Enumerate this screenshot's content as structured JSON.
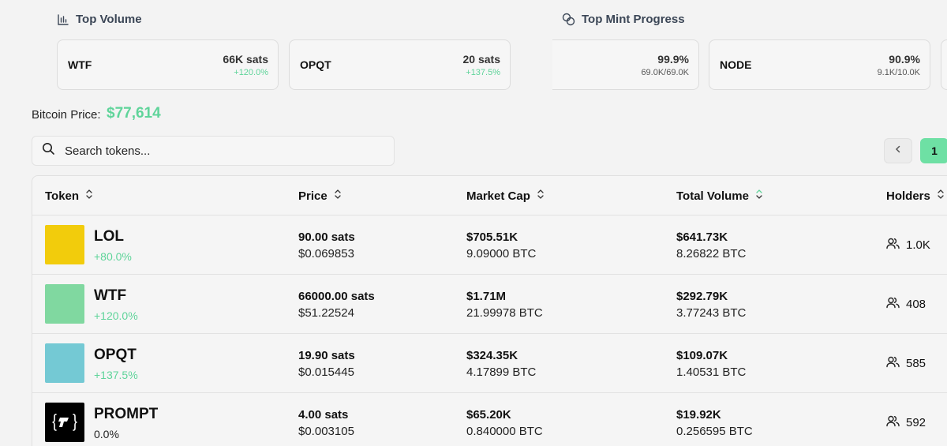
{
  "top_volume": {
    "title": "Top Volume",
    "cards": [
      {
        "name": "WTF",
        "value": "66K sats",
        "change": "+120.0%"
      },
      {
        "name": "OPQT",
        "value": "20 sats",
        "change": "+137.5%"
      }
    ]
  },
  "top_mint": {
    "title": "Top Mint Progress",
    "cards": [
      {
        "name": "",
        "value": "99.9%",
        "sub": "69.0K/69.0K"
      },
      {
        "name": "NODE",
        "value": "90.9%",
        "sub": "9.1K/10.0K"
      }
    ]
  },
  "bitcoin": {
    "label": "Bitcoin Price:",
    "value": "$77,614"
  },
  "search": {
    "placeholder": "Search tokens..."
  },
  "pagination": {
    "current": "1"
  },
  "table": {
    "headers": {
      "token": "Token",
      "price": "Price",
      "market_cap": "Market Cap",
      "total_volume": "Total Volume",
      "holders": "Holders"
    },
    "rows": [
      {
        "name": "LOL",
        "change": "+80.0%",
        "color": "#f2cc0c",
        "price_sats": "90.00 sats",
        "price_usd": "$0.069853",
        "mcap_usd": "$705.51K",
        "mcap_btc": "9.09000 BTC",
        "vol_usd": "$641.73K",
        "vol_btc": "8.26822 BTC",
        "holders": "1.0K"
      },
      {
        "name": "WTF",
        "change": "+120.0%",
        "color": "#80d8a0",
        "price_sats": "66000.00 sats",
        "price_usd": "$51.22524",
        "mcap_usd": "$1.71M",
        "mcap_btc": "21.99978 BTC",
        "vol_usd": "$292.79K",
        "vol_btc": "3.77243 BTC",
        "holders": "408"
      },
      {
        "name": "OPQT",
        "change": "+137.5%",
        "color": "#74c9d4",
        "price_sats": "19.90 sats",
        "price_usd": "$0.015445",
        "mcap_usd": "$324.35K",
        "mcap_btc": "4.17899 BTC",
        "vol_usd": "$109.07K",
        "vol_btc": "1.40531 BTC",
        "holders": "585"
      },
      {
        "name": "PROMPT",
        "change": "0.0%",
        "color": "#000000",
        "price_sats": "4.00 sats",
        "price_usd": "$0.003105",
        "mcap_usd": "$65.20K",
        "mcap_btc": "0.840000 BTC",
        "vol_usd": "$19.92K",
        "vol_btc": "0.256595 BTC",
        "holders": "592"
      }
    ]
  },
  "colors": {
    "accent_green": "#5fd49a",
    "page_button": "#6ee0a4"
  },
  "icons": [
    "bar-chart-icon",
    "coins-icon",
    "search-icon",
    "chevron-left-icon",
    "sort-icon",
    "users-icon",
    "prompt-logo-icon"
  ]
}
